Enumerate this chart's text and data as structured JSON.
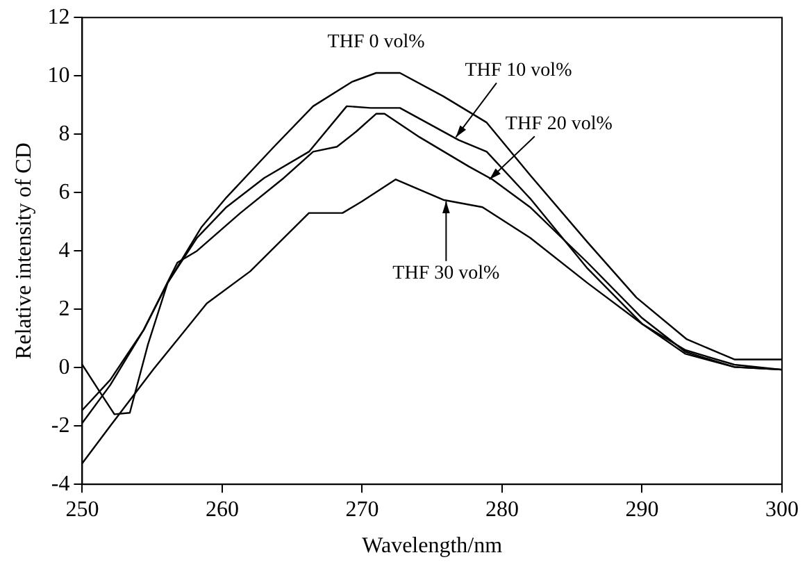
{
  "chart_data": {
    "type": "line",
    "xlabel": "Wavelength/nm",
    "ylabel": "Relative intensity of CD",
    "xlim": [
      250,
      300
    ],
    "xticks": [
      250,
      260,
      270,
      280,
      290,
      300
    ],
    "ylim": [
      -4,
      12
    ],
    "yticks": [
      -4,
      -2,
      0,
      2,
      4,
      6,
      8,
      10,
      12
    ],
    "grid": false,
    "legend": false,
    "marker": "none",
    "line_style": "solid",
    "series": [
      {
        "color": "#000000",
        "x": [
          250,
          252,
          254.4,
          256.1,
          258.5,
          260.3,
          263.7,
          266.5,
          269.3,
          271,
          272.7,
          275.8,
          278.9,
          282,
          286.1,
          289.6,
          293.2,
          296.6,
          300
        ],
        "values": [
          -1.46,
          -0.42,
          1.3,
          2.9,
          4.8,
          5.83,
          7.57,
          8.96,
          9.8,
          10.1,
          10.1,
          9.3,
          8.4,
          6.6,
          4.3,
          2.4,
          0.97,
          0.28,
          0.28
        ]
      },
      {
        "color": "#000000",
        "x": [
          250,
          251.4,
          252.3,
          253.4,
          254.7,
          256.1,
          258.2,
          260.3,
          263,
          266.2,
          268.9,
          270.6,
          272.7,
          276.9,
          278.9,
          282,
          286.1,
          290,
          293.1,
          296.6,
          300
        ],
        "values": [
          0.1,
          -0.94,
          -1.6,
          -1.55,
          0.8,
          2.9,
          4.45,
          5.5,
          6.5,
          7.4,
          8.96,
          8.9,
          8.9,
          7.8,
          7.4,
          5.8,
          3.4,
          1.5,
          0.47,
          0.02,
          -0.07
        ]
      },
      {
        "color": "#000000",
        "x": [
          250,
          252,
          254.4,
          256.8,
          258.2,
          261.3,
          264.4,
          266.5,
          268.2,
          269.6,
          271,
          271.6,
          274.1,
          277.6,
          279.3,
          282,
          286.1,
          290,
          293.1,
          296.6,
          300
        ],
        "values": [
          -1.9,
          -0.6,
          1.3,
          3.6,
          4.0,
          5.3,
          6.5,
          7.4,
          7.57,
          8.1,
          8.7,
          8.7,
          7.9,
          6.9,
          6.45,
          5.5,
          3.6,
          1.7,
          0.54,
          0.02,
          -0.07
        ]
      },
      {
        "color": "#000000",
        "x": [
          250,
          252,
          255.1,
          258.9,
          262,
          266.2,
          268.6,
          270,
          272.4,
          275.8,
          278.6,
          282,
          286.1,
          290,
          293.1,
          296.6,
          300
        ],
        "values": [
          -3.28,
          -2.0,
          -0.05,
          2.2,
          3.3,
          5.3,
          5.3,
          5.7,
          6.45,
          5.75,
          5.5,
          4.45,
          2.9,
          1.5,
          0.6,
          0.1,
          -0.07
        ]
      }
    ],
    "annotations": [
      {
        "text": "THF 0 vol%",
        "x": 271,
        "y": 10.1
      },
      {
        "text": "THF 10 vol%",
        "x": 276.7,
        "y": 7.9
      },
      {
        "text": "THF 20 vol%",
        "x": 279.1,
        "y": 6.45
      },
      {
        "text": "THF 30 vol%",
        "x": 276,
        "y": 5.7
      }
    ]
  }
}
